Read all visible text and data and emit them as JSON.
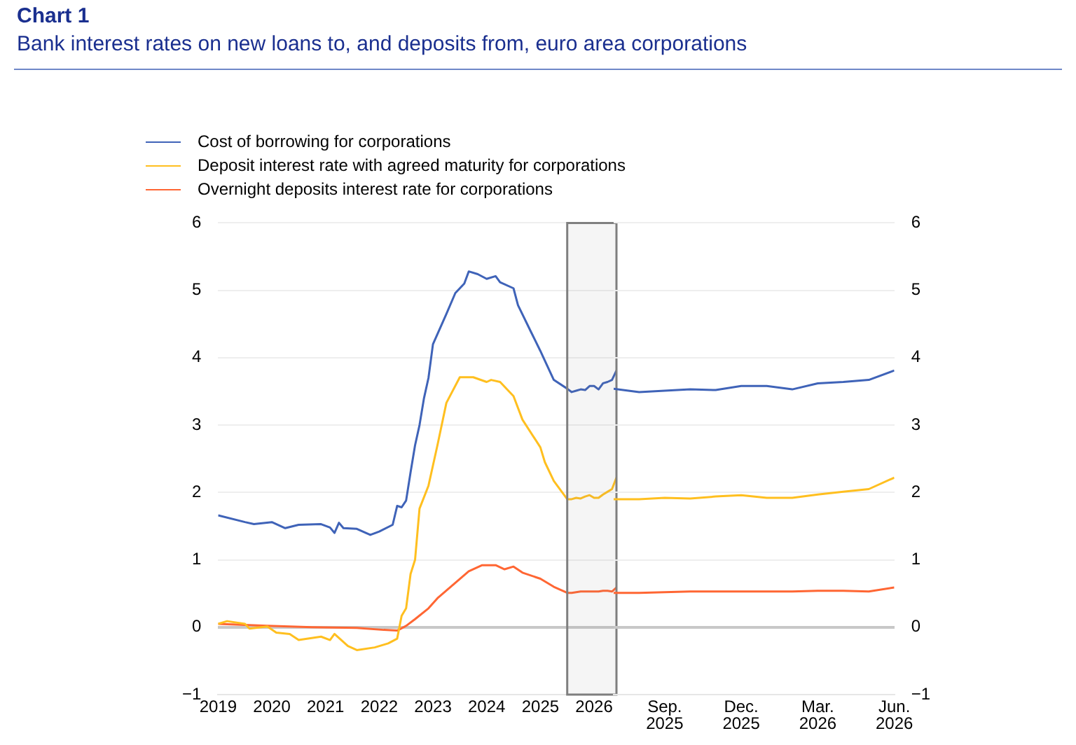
{
  "chart_data": [
    {
      "type": "line",
      "title": "Chart 1",
      "subtitle": "Bank interest rates on new loans to, and deposits from, euro area corporations",
      "legend": "top left",
      "grid": "y",
      "marker": "none",
      "line_style": "solid",
      "xlim": [
        "2019-01",
        "2026-06"
      ],
      "xticks": [
        "2019",
        "2020",
        "2021",
        "2022",
        "2023",
        "2024",
        "2025",
        "2026"
      ],
      "ylim": [
        -1,
        6
      ],
      "yticks": [
        {
          "value": -1,
          "label": "−1"
        },
        0,
        1,
        2,
        3,
        4,
        5,
        6
      ],
      "bands": [
        {
          "axis": "x",
          "from": "2025-07",
          "to": "2026-06",
          "color": "#7f7f7f"
        }
      ],
      "series": [
        {
          "name": "Cost of borrowing for corporations",
          "color": "#3f63b8",
          "x": [
            "2019-01",
            "2019-07",
            "2019-09",
            "2020-01",
            "2020-04",
            "2020-07",
            "2020-12",
            "2021-02",
            "2021-03",
            "2021-04",
            "2021-05",
            "2021-08",
            "2021-11",
            "2022-01",
            "2022-04",
            "2022-05",
            "2022-06",
            "2022-07",
            "2022-08",
            "2022-09",
            "2022-10",
            "2022-11",
            "2022-12",
            "2023-01",
            "2023-04",
            "2023-06",
            "2023-08",
            "2023-09",
            "2023-11",
            "2024-01",
            "2024-03",
            "2024-04",
            "2024-07",
            "2024-08",
            "2024-11",
            "2025-01",
            "2025-04",
            "2025-07",
            "2025-08",
            "2025-09",
            "2025-10",
            "2025-11",
            "2025-12",
            "2026-01",
            "2026-02",
            "2026-03",
            "2026-04",
            "2026-05",
            "2026-06"
          ],
          "values": [
            1.66,
            1.56,
            1.53,
            1.56,
            1.47,
            1.52,
            1.53,
            1.48,
            1.4,
            1.55,
            1.47,
            1.46,
            1.37,
            1.42,
            1.52,
            1.8,
            1.78,
            1.88,
            2.3,
            2.7,
            3.0,
            3.4,
            3.7,
            4.2,
            4.65,
            4.96,
            5.1,
            5.28,
            5.24,
            5.17,
            5.21,
            5.12,
            5.03,
            4.78,
            4.37,
            4.1,
            3.67,
            3.54,
            3.49,
            3.51,
            3.53,
            3.52,
            3.58,
            3.58,
            3.53,
            3.62,
            3.64,
            3.67,
            3.81
          ]
        },
        {
          "name": "Deposit interest rate with agreed maturity for corporations",
          "color": "#ffbf1f",
          "x": [
            "2019-01",
            "2019-03",
            "2019-07",
            "2019-08",
            "2019-12",
            "2020-02",
            "2020-05",
            "2020-07",
            "2020-12",
            "2021-02",
            "2021-03",
            "2021-06",
            "2021-08",
            "2021-12",
            "2022-03",
            "2022-05",
            "2022-06",
            "2022-07",
            "2022-08",
            "2022-09",
            "2022-10",
            "2022-12",
            "2023-02",
            "2023-04",
            "2023-07",
            "2023-10",
            "2024-01",
            "2024-02",
            "2024-04",
            "2024-07",
            "2024-09",
            "2025-01",
            "2025-02",
            "2025-04",
            "2025-07",
            "2025-08",
            "2025-09",
            "2025-10",
            "2025-11",
            "2025-12",
            "2026-01",
            "2026-02",
            "2026-03",
            "2026-04",
            "2026-05",
            "2026-06"
          ],
          "values": [
            0.05,
            0.09,
            0.05,
            -0.02,
            0.01,
            -0.08,
            -0.1,
            -0.19,
            -0.14,
            -0.19,
            -0.1,
            -0.28,
            -0.34,
            -0.3,
            -0.24,
            -0.17,
            0.17,
            0.28,
            0.79,
            1.0,
            1.76,
            2.1,
            2.7,
            3.33,
            3.71,
            3.71,
            3.64,
            3.67,
            3.64,
            3.43,
            3.08,
            2.67,
            2.45,
            2.17,
            1.9,
            1.9,
            1.92,
            1.91,
            1.94,
            1.96,
            1.92,
            1.92,
            1.97,
            2.01,
            2.05,
            2.22
          ]
        },
        {
          "name": "Overnight deposits interest rate for corporations",
          "color": "#ff6633",
          "x": [
            "2019-01",
            "2019-12",
            "2020-10",
            "2021-08",
            "2022-02",
            "2022-05",
            "2022-07",
            "2022-09",
            "2022-12",
            "2023-02",
            "2023-06",
            "2023-09",
            "2023-12",
            "2024-03",
            "2024-05",
            "2024-07",
            "2024-09",
            "2025-01",
            "2025-04",
            "2025-07",
            "2025-08",
            "2025-09",
            "2025-10",
            "2025-11",
            "2025-12",
            "2026-01",
            "2026-02",
            "2026-03",
            "2026-04",
            "2026-05",
            "2026-06"
          ],
          "values": [
            0.05,
            0.02,
            0.0,
            -0.01,
            -0.04,
            -0.05,
            0.02,
            0.12,
            0.28,
            0.43,
            0.66,
            0.83,
            0.92,
            0.92,
            0.86,
            0.9,
            0.81,
            0.72,
            0.6,
            0.51,
            0.51,
            0.52,
            0.53,
            0.53,
            0.53,
            0.53,
            0.53,
            0.54,
            0.54,
            0.53,
            0.59
          ]
        }
      ]
    },
    {
      "type": "line",
      "grid": "y",
      "marker": "none",
      "line_style": "solid",
      "x": [
        "2025-07",
        "2025-08",
        "2025-09",
        "2025-10",
        "2025-11",
        "2025-12",
        "2026-01",
        "2026-02",
        "2026-03",
        "2026-04",
        "2026-05",
        "2026-06"
      ],
      "xlim": [
        "2025-07",
        "2026-06"
      ],
      "xticks": [
        {
          "value": "2025-09",
          "label": "Sep. 2025"
        },
        {
          "value": "2025-12",
          "label": "Dec. 2025"
        },
        {
          "value": "2026-03",
          "label": "Mar. 2026"
        },
        {
          "value": "2026-06",
          "label": "Jun. 2026"
        }
      ],
      "ylim": [
        -1,
        6
      ],
      "yticks": [
        {
          "value": -1,
          "label": "−1"
        },
        0,
        1,
        2,
        3,
        4,
        5,
        6
      ],
      "series": [
        {
          "color": "#3f63b8",
          "values": [
            3.54,
            3.49,
            3.51,
            3.53,
            3.52,
            3.58,
            3.58,
            3.53,
            3.62,
            3.64,
            3.67,
            3.81
          ]
        },
        {
          "color": "#ffbf1f",
          "values": [
            1.9,
            1.9,
            1.92,
            1.91,
            1.94,
            1.96,
            1.92,
            1.92,
            1.97,
            2.01,
            2.05,
            2.22
          ]
        },
        {
          "color": "#ff6633",
          "values": [
            0.51,
            0.51,
            0.52,
            0.53,
            0.53,
            0.53,
            0.53,
            0.53,
            0.54,
            0.54,
            0.53,
            0.59
          ]
        }
      ]
    }
  ]
}
